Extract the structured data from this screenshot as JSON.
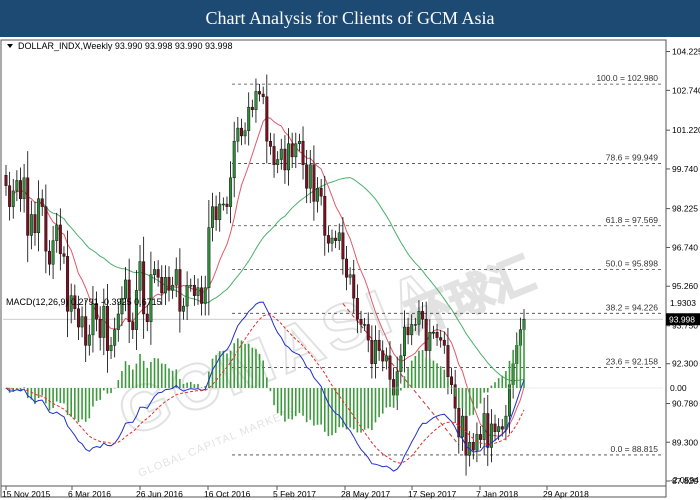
{
  "header": {
    "title": "Chart Analysis for Clients of GCM Asia"
  },
  "watermark": {
    "brand": "GCMASIA",
    "chinese": "环球汇",
    "tagline": "GLOBAL CAPITAL MARKETS"
  },
  "chart_data": {
    "type": "candlestick",
    "symbol_label": "DOLLAR_INDX,Weekly  93.990 93.998 93.990 93.998",
    "price_axis": {
      "ylim": [
        87.82,
        104.55
      ],
      "ticks": [
        "104.225",
        "102.740",
        "101.220",
        "99.740",
        "98.225",
        "96.740",
        "95.260",
        "93.750",
        "92.300",
        "90.780",
        "89.300",
        "87.820"
      ],
      "ticks_values": [
        104.225,
        102.74,
        101.22,
        99.74,
        98.225,
        96.74,
        95.26,
        93.75,
        92.3,
        90.78,
        89.3,
        87.82
      ],
      "current_price": "93.998",
      "current_price_value": 93.998
    },
    "x_axis": {
      "labels": [
        "15 Nov 2015",
        "6 Mar 2016",
        "26 Jun 2016",
        "16 Oct 2016",
        "5 Feb 2017",
        "28 May 2017",
        "17 Sep 2017",
        "7 Jan 2018",
        "29 Apr 2018"
      ]
    },
    "fib_levels": [
      {
        "label": "100.0 = 102.980",
        "value": 102.98
      },
      {
        "label": "78.6 = 99.949",
        "value": 99.949
      },
      {
        "label": "61.8 = 97.569",
        "value": 97.569
      },
      {
        "label": "50.0 = 95.898",
        "value": 95.898
      },
      {
        "label": "38.2 = 94.226",
        "value": 94.226
      },
      {
        "label": "23.6 = 92.158",
        "value": 92.158
      },
      {
        "label": "0.0 = 88.815",
        "value": 88.815
      }
    ],
    "trendline": {
      "from": 94.6,
      "to": 89.2
    },
    "series": [
      {
        "id": "price",
        "values": [
          99.1,
          98.3,
          98.9,
          99.3,
          98.6,
          99.4,
          97.2,
          98.0,
          97.3,
          98.6,
          98.3,
          96.6,
          96.1,
          97.0,
          97.6,
          96.5,
          96.4,
          94.3,
          94.9,
          94.4,
          93.7,
          94.1,
          93.0,
          93.4,
          94.6,
          94.0,
          93.3,
          94.5,
          92.8,
          93.0,
          93.6,
          94.2,
          94.8,
          95.5,
          93.9,
          93.6,
          95.1,
          96.2,
          94.2,
          93.9,
          95.7,
          95.9,
          95.6,
          95.0,
          95.6,
          95.1,
          95.3,
          95.9,
          94.3,
          94.5,
          95.3,
          95.3,
          94.9,
          95.2,
          94.6,
          95.2,
          97.5,
          98.3,
          97.8,
          98.4,
          98.4,
          98.3,
          99.4,
          100.8,
          101.3,
          101.0,
          101.2,
          102.1,
          102.0,
          102.7,
          102.6,
          102.5,
          100.8,
          100.6,
          99.9,
          100.1,
          100.5,
          99.7,
          100.7,
          100.2,
          100.7,
          100.8,
          99.9,
          99.0,
          99.9,
          98.5,
          99.0,
          98.7,
          97.2,
          96.9,
          97.1,
          97.0,
          97.3,
          96.3,
          95.6,
          95.7,
          94.8,
          94.0,
          93.8,
          93.8,
          93.2,
          92.3,
          93.2,
          92.8,
          92.4,
          92.6,
          91.7,
          91.1,
          92.0,
          92.6,
          93.7,
          93.4,
          93.8,
          93.8,
          94.3,
          94.0,
          92.8,
          93.5,
          93.5,
          93.3,
          93.2,
          93.0,
          91.8,
          91.5,
          90.6,
          89.5,
          90.3,
          88.8,
          89.3,
          89.0,
          89.6,
          89.4,
          90.4,
          89.1,
          90.0,
          89.7,
          89.9,
          89.8,
          90.3,
          91.5,
          92.3,
          93.0,
          93.6,
          93.998
        ]
      },
      {
        "id": "ma_fast",
        "color": "#e05a6a"
      },
      {
        "id": "ma_slow",
        "color": "#4caf6a"
      }
    ],
    "macd": {
      "label": "MACD(12,26,9) 0.2791 -0.3925 0.6715",
      "ticks": [
        "1.9303",
        "0.00",
        "-2.0594"
      ],
      "ticks_values": [
        1.9303,
        0.0,
        -2.0594
      ],
      "line_color": "#1f2fd0",
      "signal_color": "#e03030",
      "histogram_color": "#3c9a3c"
    }
  }
}
